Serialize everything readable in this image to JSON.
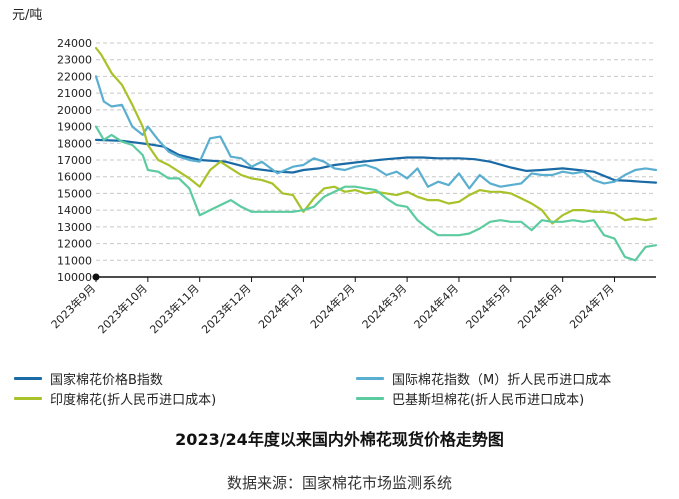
{
  "chart_data": {
    "type": "line",
    "title": "2023/24年度以来国内外棉花现货价格走势图",
    "source": "数据来源：国家棉花市场监测系统",
    "ylabel": "元/吨",
    "xlabel": "",
    "ylim": [
      10000,
      24000
    ],
    "yticks": [
      10000,
      11000,
      12000,
      13000,
      14000,
      15000,
      16000,
      17000,
      18000,
      19000,
      20000,
      21000,
      22000,
      23000,
      24000
    ],
    "xlim": [
      0,
      10.8
    ],
    "xticks": [
      {
        "x": 0,
        "label": "2023年9月"
      },
      {
        "x": 1,
        "label": "2023年10月"
      },
      {
        "x": 2,
        "label": "2023年11月"
      },
      {
        "x": 3,
        "label": "2023年12月"
      },
      {
        "x": 4,
        "label": "2024年1月"
      },
      {
        "x": 5,
        "label": "2024年2月"
      },
      {
        "x": 6,
        "label": "2024年3月"
      },
      {
        "x": 7,
        "label": "2024年4月"
      },
      {
        "x": 8,
        "label": "2024年5月"
      },
      {
        "x": 9,
        "label": "2024年6月"
      },
      {
        "x": 10,
        "label": "2024年7月"
      }
    ],
    "grid": true,
    "legend_position": "bottom",
    "series": [
      {
        "name": "国家棉花价格B指数",
        "color": "#1a6aa6",
        "x": [
          0,
          0.5,
          1.0,
          1.3,
          1.6,
          2.0,
          2.5,
          3.0,
          3.5,
          3.8,
          4.0,
          4.3,
          4.6,
          5.0,
          5.3,
          5.6,
          6.0,
          6.3,
          6.6,
          7.0,
          7.3,
          7.6,
          8.0,
          8.3,
          8.6,
          9.0,
          9.3,
          9.6,
          10.0,
          10.3,
          10.5,
          10.8
        ],
        "y": [
          18200,
          18150,
          17950,
          17800,
          17300,
          17000,
          16900,
          16500,
          16300,
          16250,
          16400,
          16500,
          16700,
          16850,
          16950,
          17050,
          17150,
          17150,
          17100,
          17100,
          17050,
          16900,
          16550,
          16350,
          16400,
          16500,
          16400,
          16300,
          15800,
          15750,
          15700,
          15650
        ]
      },
      {
        "name": "国际棉花指数（M）折人民币进口成本",
        "color": "#5aaed0",
        "x": [
          0,
          0.15,
          0.3,
          0.5,
          0.7,
          0.9,
          1.0,
          1.2,
          1.4,
          1.6,
          1.8,
          2.0,
          2.2,
          2.4,
          2.6,
          2.8,
          3.0,
          3.2,
          3.5,
          3.8,
          4.0,
          4.2,
          4.4,
          4.6,
          4.8,
          5.0,
          5.2,
          5.4,
          5.6,
          5.8,
          6.0,
          6.2,
          6.4,
          6.6,
          6.8,
          7.0,
          7.2,
          7.4,
          7.6,
          7.8,
          8.0,
          8.2,
          8.4,
          8.6,
          8.8,
          9.0,
          9.2,
          9.4,
          9.6,
          9.8,
          10.0,
          10.2,
          10.4,
          10.6,
          10.8
        ],
        "y": [
          22000,
          20500,
          20200,
          20300,
          19000,
          18500,
          19000,
          18200,
          17500,
          17200,
          17000,
          16900,
          18300,
          18400,
          17200,
          17100,
          16600,
          16900,
          16200,
          16600,
          16700,
          17100,
          16900,
          16500,
          16400,
          16600,
          16700,
          16500,
          16100,
          16300,
          15900,
          16500,
          15400,
          15700,
          15500,
          16200,
          15300,
          16100,
          15600,
          15400,
          15500,
          15600,
          16200,
          16100,
          16100,
          16300,
          16200,
          16300,
          15800,
          15600,
          15700,
          16100,
          16400,
          16500,
          16400
        ]
      },
      {
        "name": "印度棉花(折人民币进口成本)",
        "color": "#a8c22a",
        "x": [
          0,
          0.1,
          0.3,
          0.5,
          0.7,
          0.9,
          1.0,
          1.2,
          1.4,
          1.6,
          1.8,
          2.0,
          2.2,
          2.4,
          2.6,
          2.8,
          3.0,
          3.2,
          3.4,
          3.6,
          3.8,
          4.0,
          4.2,
          4.4,
          4.6,
          4.8,
          5.0,
          5.2,
          5.4,
          5.6,
          5.8,
          6.0,
          6.2,
          6.4,
          6.6,
          6.8,
          7.0,
          7.2,
          7.4,
          7.6,
          7.8,
          8.0,
          8.2,
          8.4,
          8.6,
          8.8,
          9.0,
          9.2,
          9.4,
          9.6,
          9.8,
          10.0,
          10.2,
          10.4,
          10.6,
          10.8
        ],
        "y": [
          23700,
          23300,
          22200,
          21500,
          20300,
          19000,
          17900,
          17000,
          16700,
          16300,
          15900,
          15400,
          16400,
          16900,
          16500,
          16100,
          15900,
          15800,
          15600,
          15000,
          14900,
          13900,
          14700,
          15300,
          15400,
          15100,
          15200,
          15000,
          15100,
          15000,
          14900,
          15100,
          14800,
          14600,
          14600,
          14400,
          14500,
          14900,
          15200,
          15100,
          15100,
          15000,
          14700,
          14400,
          14000,
          13200,
          13700,
          14000,
          14000,
          13900,
          13900,
          13800,
          13400,
          13500,
          13400,
          13500
        ]
      },
      {
        "name": "巴基斯坦棉花(折人民币进口成本)",
        "color": "#5ccba0",
        "x": [
          0,
          0.15,
          0.3,
          0.5,
          0.7,
          0.9,
          1.0,
          1.2,
          1.4,
          1.6,
          1.8,
          2.0,
          2.2,
          2.4,
          2.6,
          2.8,
          3.0,
          3.2,
          3.4,
          3.6,
          3.8,
          4.0,
          4.2,
          4.4,
          4.6,
          4.8,
          5.0,
          5.2,
          5.4,
          5.6,
          5.8,
          6.0,
          6.2,
          6.4,
          6.6,
          6.8,
          7.0,
          7.2,
          7.4,
          7.6,
          7.8,
          8.0,
          8.2,
          8.4,
          8.6,
          8.8,
          9.0,
          9.2,
          9.4,
          9.6,
          9.8,
          10.0,
          10.2,
          10.4,
          10.6,
          10.8
        ],
        "y": [
          19000,
          18200,
          18500,
          18100,
          17900,
          17300,
          16400,
          16300,
          15900,
          15900,
          15300,
          13700,
          14000,
          14300,
          14600,
          14200,
          13900,
          13900,
          13900,
          13900,
          13900,
          14000,
          14200,
          14800,
          15100,
          15400,
          15400,
          15300,
          15200,
          14700,
          14300,
          14200,
          13400,
          12900,
          12500,
          12500,
          12500,
          12600,
          12900,
          13300,
          13400,
          13300,
          13300,
          12800,
          13400,
          13300,
          13300,
          13400,
          13300,
          13400,
          12500,
          12300,
          11200,
          11000,
          11800,
          11900
        ]
      }
    ]
  },
  "legend": {
    "items": [
      {
        "label": "国家棉花价格B指数",
        "color": "#1a6aa6"
      },
      {
        "label": "国际棉花指数（M）折人民币进口成本",
        "color": "#5aaed0"
      },
      {
        "label": "印度棉花(折人民币进口成本)",
        "color": "#a8c22a"
      },
      {
        "label": "巴基斯坦棉花(折人民币进口成本)",
        "color": "#5ccba0"
      }
    ]
  }
}
